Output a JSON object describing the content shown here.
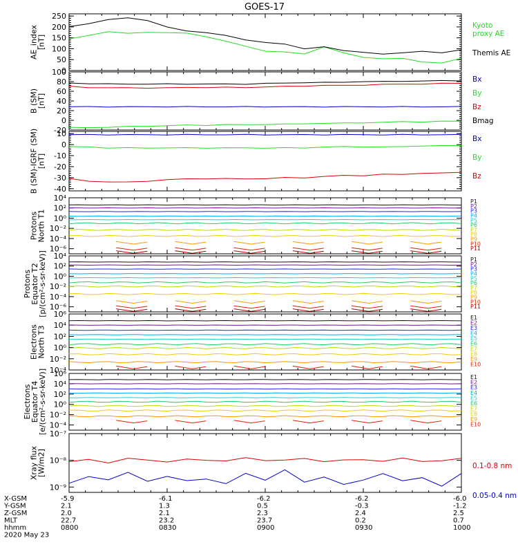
{
  "title": "GOES-17",
  "colors": {
    "black": "#000000",
    "blue": "#0000cc",
    "green": "#22dd22",
    "red": "#dd0000",
    "p": [
      "#111111",
      "#771199",
      "#2222ff",
      "#00aaff",
      "#22cccc",
      "#22cc66",
      "#bbdd00",
      "#eecc00",
      "#ff9900",
      "#dd2200",
      "#aa0000"
    ],
    "e": [
      "#111111",
      "#771199",
      "#2222ff",
      "#00aaff",
      "#22cccc",
      "#22cc66",
      "#bbdd00",
      "#eecc00",
      "#ff9900",
      "#dd2200",
      "#aa0000"
    ]
  },
  "chart_data": [
    {
      "type": "line",
      "ylabel": [
        "AE_index",
        "[nT]"
      ],
      "ylim": [
        0,
        260
      ],
      "yticks": [
        "250",
        "200",
        "150",
        "100",
        "50",
        "0"
      ],
      "ytick_values": [
        250,
        200,
        150,
        100,
        50,
        0
      ],
      "log": false,
      "series": [
        {
          "name": "Kyoto\nproxy AE",
          "color": "green",
          "y": [
            145,
            160,
            180,
            170,
            175,
            175,
            170,
            155,
            135,
            110,
            90,
            85,
            75,
            110,
            80,
            60,
            55,
            55,
            40,
            35,
            55
          ]
        },
        {
          "name": "Themis AE",
          "color": "black",
          "y": [
            200,
            215,
            235,
            240,
            230,
            200,
            180,
            175,
            160,
            140,
            130,
            120,
            100,
            110,
            90,
            85,
            75,
            80,
            90,
            80,
            95
          ]
        }
      ]
    },
    {
      "type": "line",
      "ylabel": [
        "B (SM)",
        "[nT]"
      ],
      "ylim": [
        -20,
        100
      ],
      "yticks": [
        "100",
        "80",
        "60",
        "40",
        "20",
        "0",
        "-20"
      ],
      "ytick_values": [
        100,
        80,
        60,
        40,
        20,
        0,
        -20
      ],
      "log": false,
      "series": [
        {
          "name": "Bx",
          "color": "blue",
          "y": [
            28,
            28,
            28,
            28,
            28,
            28,
            28,
            28,
            28,
            28,
            28,
            28,
            28,
            28,
            28,
            28,
            28,
            28,
            28,
            28,
            28
          ]
        },
        {
          "name": "By",
          "color": "green",
          "y": [
            -15,
            -15,
            -14,
            -13,
            -12,
            -11,
            -10,
            -10,
            -9,
            -9,
            -8,
            -8,
            -7,
            -6,
            -6,
            -5,
            -4,
            -3,
            -3,
            -2,
            -2
          ]
        },
        {
          "name": "Bz",
          "color": "red",
          "y": [
            70,
            68,
            67,
            67,
            67,
            67,
            68,
            68,
            68,
            68,
            69,
            70,
            71,
            72,
            72,
            73,
            74,
            75,
            75,
            76,
            77
          ]
        },
        {
          "name": "Bmag",
          "color": "black",
          "y": [
            77,
            76,
            75,
            75,
            75,
            75,
            75,
            75,
            75,
            75,
            76,
            77,
            78,
            78,
            79,
            80,
            80,
            81,
            81,
            82,
            82
          ]
        }
      ]
    },
    {
      "type": "line",
      "ylabel": [
        "B (SM)-IGRF (SM)",
        "[nT]"
      ],
      "ylim": [
        -42,
        12
      ],
      "yticks": [
        "10",
        "0",
        "-10",
        "-20",
        "-30",
        "-40"
      ],
      "ytick_values": [
        10,
        0,
        -10,
        -20,
        -30,
        -40
      ],
      "log": false,
      "series": [
        {
          "name": "Bx",
          "color": "blue",
          "y": [
            9,
            9,
            9,
            9,
            9,
            9,
            9,
            9,
            9,
            9,
            9,
            9,
            9,
            9,
            9,
            9,
            9,
            9,
            9,
            9,
            9
          ]
        },
        {
          "name": "By",
          "color": "green",
          "y": [
            -2,
            -2,
            -3,
            -3,
            -3,
            -3,
            -3,
            -3,
            -3,
            -3,
            -3,
            -3,
            -3,
            -2,
            -2,
            -2,
            -2,
            -2,
            -1,
            -1,
            -1
          ]
        },
        {
          "name": "Bz",
          "color": "red",
          "y": [
            -31,
            -33,
            -34,
            -34,
            -33,
            -32,
            -31,
            -31,
            -31,
            -31,
            -31,
            -30,
            -30,
            -29,
            -28,
            -28,
            -27,
            -27,
            -26,
            -26,
            -25
          ]
        }
      ]
    },
    {
      "type": "line",
      "ylabel": [
        "Protons",
        "North T1"
      ],
      "log": true,
      "ylim": [
        -7,
        4
      ],
      "yticks": [
        "10⁴",
        "10²",
        "10⁰",
        "10⁻²",
        "10⁻⁴",
        "10⁻⁶"
      ],
      "ytick_values": [
        4,
        2,
        0,
        -2,
        -4,
        -6
      ],
      "legend": [
        "P1",
        "P2",
        "P3",
        "P4",
        "P5",
        "P6",
        "P7",
        "P8",
        "P9",
        "P10",
        "P11"
      ],
      "legend_colors": "p",
      "levels": [
        2.6,
        2.0,
        1.3,
        0.4,
        -0.3,
        -1.0,
        -2.3,
        -3.5,
        -4.8,
        -6.0,
        -6.6
      ],
      "series_visible": 8
    },
    {
      "type": "line",
      "ylabel": [
        "Protons",
        "Equator T2",
        "[p/(cm²-s-sr-keV)]"
      ],
      "log": true,
      "ylim": [
        -7,
        4
      ],
      "yticks": [
        "10⁴",
        "10²",
        "10⁰",
        "10⁻²",
        "10⁻⁴",
        "10⁻⁶"
      ],
      "ytick_values": [
        4,
        2,
        0,
        -2,
        -4,
        -6
      ],
      "legend": [
        "P1",
        "P2",
        "P3",
        "P4",
        "P5",
        "P6",
        "P7",
        "P8",
        "P9",
        "P10",
        "P11"
      ],
      "legend_colors": "p",
      "levels": [
        2.8,
        2.2,
        1.4,
        0.5,
        -0.3,
        -1.2,
        -2.0,
        -3.5,
        -5.0,
        -6.0,
        -6.6
      ],
      "series_visible": 8
    },
    {
      "type": "line",
      "ylabel": [
        "Electrons",
        "North T3"
      ],
      "log": true,
      "ylim": [
        -4,
        6
      ],
      "yticks": [
        "10⁶",
        "10⁴",
        "10²",
        "10⁰",
        "10⁻²",
        "10⁻⁴"
      ],
      "ytick_values": [
        6,
        4,
        2,
        0,
        -2,
        -4
      ],
      "legend": [
        "E1",
        "E2",
        "E3",
        "E4",
        "E5",
        "E6",
        "E7",
        "E8",
        "E9",
        "E10"
      ],
      "legend_colors": "e",
      "levels": [
        4.8,
        4.0,
        3.1,
        2.3,
        1.5,
        0.6,
        -0.1,
        -1.2,
        -2.6,
        -3.5
      ],
      "series_visible": 9
    },
    {
      "type": "line",
      "ylabel": [
        "Electrons",
        "Equator T4",
        "[e/(cm²-s-sr-keV)]"
      ],
      "log": true,
      "ylim": [
        -5,
        6
      ],
      "yticks": [
        "10⁶",
        "10⁴",
        "10²",
        "10⁰",
        "10⁻²",
        "10⁻⁴"
      ],
      "ytick_values": [
        6,
        4,
        2,
        0,
        -2,
        -4
      ],
      "legend": [
        "E1",
        "E2",
        "E3",
        "E4",
        "E5",
        "E6",
        "E7",
        "E8",
        "E9",
        "E10"
      ],
      "legend_colors": "e",
      "levels": [
        4.8,
        4.0,
        3.0,
        2.2,
        1.3,
        0.5,
        -0.3,
        -1.2,
        -2.3,
        -3.3
      ],
      "series_visible": 9
    },
    {
      "type": "line",
      "ylabel": [
        "Xray flux",
        "[W/m2]"
      ],
      "log": true,
      "ylim": [
        -9.2,
        -7
      ],
      "yticks": [
        "10⁻⁷",
        "10⁻⁸",
        "10⁻⁹"
      ],
      "ytick_values": [
        -7,
        -8,
        -9
      ],
      "series": [
        {
          "name": "0.1-0.8 nm",
          "color": "red",
          "y": [
            -8.05,
            -8.0,
            -8.05,
            -7.95,
            -8.0,
            -8.02,
            -8.0,
            -7.98,
            -8.0,
            -7.95,
            -7.97,
            -8.0,
            -7.96,
            -8.0,
            -8.02,
            -7.98,
            -8.0,
            -7.96,
            -8.02,
            -8.0,
            -7.97
          ]
        },
        {
          "name": "0.05-0.4 nm",
          "color": "blue",
          "y": [
            -8.9,
            -8.6,
            -8.7,
            -8.5,
            -8.75,
            -8.6,
            -8.8,
            -8.65,
            -8.9,
            -8.5,
            -8.7,
            -8.4,
            -8.8,
            -8.6,
            -8.95,
            -8.7,
            -8.5,
            -8.8,
            -8.6,
            -9.0,
            -8.5
          ]
        }
      ]
    }
  ],
  "x_axis": {
    "rows": [
      "X-GSM",
      "Y-GSM",
      "Z-GSM",
      "MLT",
      "hhmm"
    ],
    "date": "2020 May 23",
    "columns": [
      [
        "-5.9",
        "2.1",
        "2.0",
        "22.7",
        "0800"
      ],
      [
        "-6.1",
        "1.3",
        "2.1",
        "23.2",
        "0830"
      ],
      [
        "-6.2",
        "0.5",
        "2.3",
        "23.7",
        "0900"
      ],
      [
        "-6.2",
        "-0.3",
        "2.4",
        "0.2",
        "0930"
      ],
      [
        "-6.0",
        "-1.2",
        "2.5",
        "0.7",
        "1000"
      ]
    ]
  }
}
